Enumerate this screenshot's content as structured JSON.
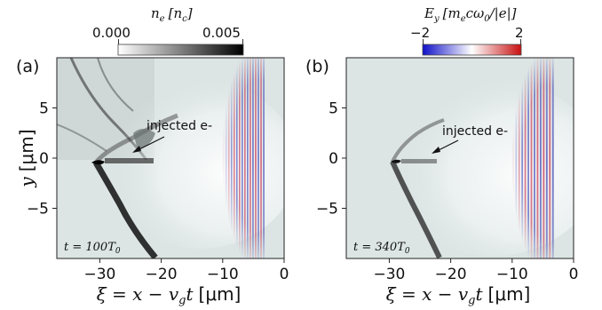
{
  "chart_data": [
    {
      "type": "heatmap",
      "panel_label": "(a)",
      "xlabel": "ξ = x − v_g t [μm]",
      "ylabel": "y [μm]",
      "xlim": [
        -37,
        0
      ],
      "ylim": [
        -10,
        10
      ],
      "x_ticks": [
        "−30",
        "−20",
        "−10",
        "0"
      ],
      "x_tick_values": [
        -30,
        -20,
        -10,
        0
      ],
      "y_ticks": [
        "5",
        "0",
        "−5"
      ],
      "y_tick_values": [
        5,
        0,
        -5
      ],
      "annotation": "injected e-",
      "time_label": "t = 100T₀",
      "colorbar": {
        "label": "n_e [n_c]",
        "tick_labels": [
          "0.000",
          "0.005"
        ],
        "range": [
          0,
          0.005
        ],
        "colors": [
          "#ffffff",
          "#000000"
        ]
      },
      "laser_x_range": [
        -10,
        -3
      ]
    },
    {
      "type": "heatmap",
      "panel_label": "(b)",
      "xlabel": "ξ = x − v_g t [μm]",
      "ylabel": "",
      "xlim": [
        -37,
        0
      ],
      "ylim": [
        -10,
        10
      ],
      "x_ticks": [
        "−30",
        "−20",
        "−10",
        "0"
      ],
      "x_tick_values": [
        -30,
        -20,
        -10,
        0
      ],
      "y_ticks": [
        "5",
        "0",
        "−5"
      ],
      "y_tick_values": [
        5,
        0,
        -5
      ],
      "annotation": "injected e-",
      "time_label": "t = 340T₀",
      "colorbar": {
        "label": "E_y [m_e c ω₀/|e|]",
        "tick_labels": [
          "−2",
          "2"
        ],
        "range": [
          -2,
          2
        ],
        "colors": [
          "#0000cc",
          "#ffffff",
          "#cc0000"
        ]
      },
      "laser_x_range": [
        -11,
        -3
      ]
    }
  ],
  "display": {
    "y_label_text": "y",
    "y_label_unit": "[μm]",
    "x_label_xi": "ξ",
    "x_label_mid": " = x − v",
    "x_label_sub": "g",
    "x_label_t": "t",
    "x_label_unit": "[μm]",
    "cb_a_main": "n",
    "cb_a_sub": "e",
    "cb_a_unit": "[n",
    "cb_a_unit_sub": "c",
    "cb_a_close": "]",
    "cb_b_main": "E",
    "cb_b_sub": "y",
    "cb_b_unit": "[m",
    "cb_b_unit_sub": "e",
    "cb_b_rest": "cω",
    "cb_b_rest_sub": "0",
    "cb_b_close": "/|e|]",
    "t_a_main": "t = 100T",
    "t_a_sub": "0",
    "t_b_main": "t = 340T",
    "t_b_sub": "0"
  }
}
